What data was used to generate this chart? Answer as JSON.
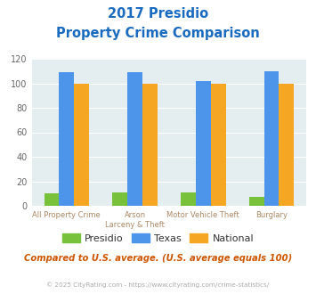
{
  "title_line1": "2017 Presidio",
  "title_line2": "Property Crime Comparison",
  "cat_labels_line1": [
    "All Property Crime",
    "Arson",
    "Motor Vehicle Theft",
    "Burglary"
  ],
  "cat_labels_line2": [
    "",
    "Larceny & Theft",
    "",
    ""
  ],
  "presidio": [
    10,
    11,
    11,
    7
  ],
  "texas": [
    109,
    109,
    102,
    110
  ],
  "national": [
    100,
    100,
    100,
    100
  ],
  "colors": {
    "presidio": "#78c13a",
    "texas": "#4d94eb",
    "national": "#f5a623"
  },
  "ylim": [
    0,
    120
  ],
  "yticks": [
    0,
    20,
    40,
    60,
    80,
    100,
    120
  ],
  "bg_color": "#e4eef0",
  "title_color": "#1a6bbf",
  "footer_note": "Compared to U.S. average. (U.S. average equals 100)",
  "copyright": "© 2025 CityRating.com - https://www.cityrating.com/crime-statistics/",
  "note_color": "#cc5500",
  "copyright_color": "#aaaaaa",
  "xtick_color": "#aa8866"
}
